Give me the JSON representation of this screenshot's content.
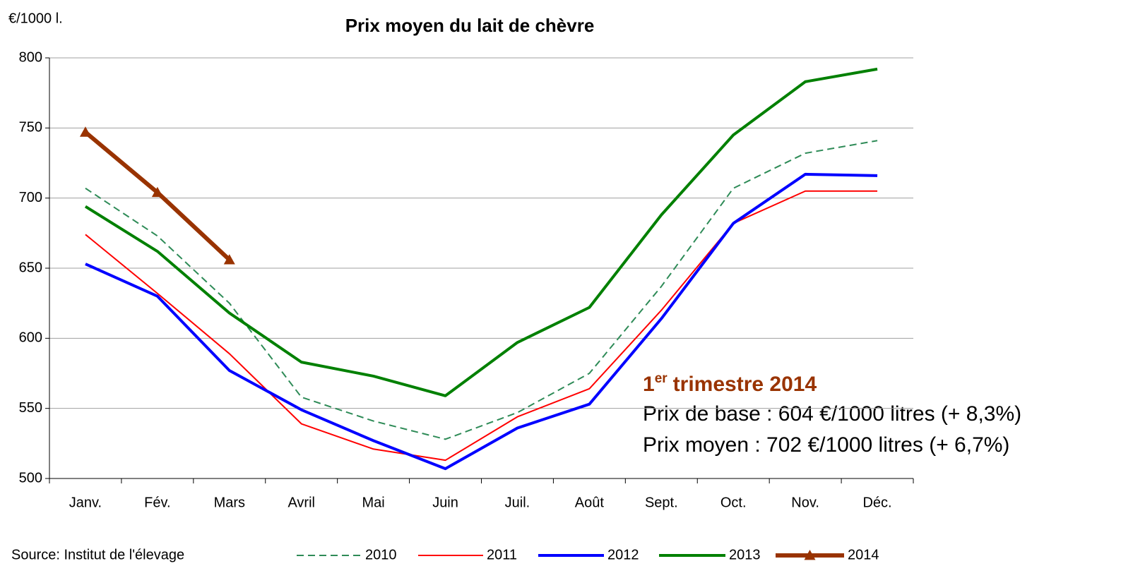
{
  "chart_data": {
    "type": "line",
    "title": "Prix moyen du lait de chèvre",
    "y_label": "€/1000 l.",
    "source": "Source: Institut de l'élevage",
    "categories": [
      "Janv.",
      "Fév.",
      "Mars",
      "Avril",
      "Mai",
      "Juin",
      "Juil.",
      "Août",
      "Sept.",
      "Oct.",
      "Nov.",
      "Déc."
    ],
    "ylim": [
      500,
      800
    ],
    "yticks": [
      500,
      550,
      600,
      650,
      700,
      750,
      800
    ],
    "grid": true,
    "legend": "bottom",
    "series": [
      {
        "name": "2010",
        "color": "#2e8b57",
        "dashed": true,
        "width": 2,
        "values": [
          707,
          673,
          625,
          558,
          541,
          528,
          547,
          575,
          637,
          707,
          732,
          741
        ]
      },
      {
        "name": "2011",
        "color": "#ff0000",
        "width": 2,
        "values": [
          674,
          632,
          589,
          539,
          521,
          513,
          544,
          564,
          620,
          682,
          705,
          705
        ]
      },
      {
        "name": "2012",
        "color": "#0000ff",
        "width": 4,
        "values": [
          653,
          630,
          577,
          549,
          527,
          507,
          536,
          553,
          614,
          682,
          717,
          716
        ]
      },
      {
        "name": "2013",
        "color": "#008000",
        "width": 4,
        "values": [
          694,
          662,
          618,
          583,
          573,
          559,
          597,
          622,
          688,
          745,
          783,
          792
        ]
      },
      {
        "name": "2014",
        "color": "#993300",
        "width": 6,
        "marker": "triangle",
        "values": [
          747,
          704,
          656,
          null,
          null,
          null,
          null,
          null,
          null,
          null,
          null,
          null
        ]
      }
    ],
    "annotation": {
      "heading_number": "1",
      "heading_sup": "er",
      "heading_rest": "trimestre 2014",
      "heading_color": "#993300",
      "lines": [
        "Prix de base : 604 €/1000 litres (+ 8,3%)",
        "Prix moyen : 702 €/1000 litres (+ 6,7%)"
      ]
    }
  }
}
